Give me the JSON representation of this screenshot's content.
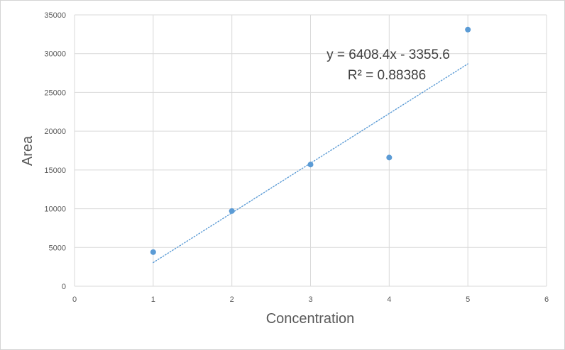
{
  "chart_data": {
    "type": "scatter",
    "title": "",
    "xlabel": "Concentration",
    "ylabel": "Area",
    "xlim": [
      0,
      6
    ],
    "ylim": [
      0,
      35000
    ],
    "xticks": [
      "0",
      "1",
      "2",
      "3",
      "4",
      "5",
      "6"
    ],
    "yticks": [
      "0",
      "5000",
      "10000",
      "15000",
      "20000",
      "25000",
      "30000",
      "35000"
    ],
    "grid": true,
    "points": [
      {
        "x": 1,
        "y": 4400
      },
      {
        "x": 2,
        "y": 9700
      },
      {
        "x": 3,
        "y": 15700
      },
      {
        "x": 4,
        "y": 16600
      },
      {
        "x": 5,
        "y": 33100
      }
    ],
    "trendline": {
      "type": "linear",
      "slope": 6408.4,
      "intercept": -3355.6,
      "x_range": [
        1,
        5
      ],
      "style": "dotted",
      "equation_label": "y = 6408.4x - 3355.6",
      "r2_label": "R² = 0.88386"
    },
    "colors": {
      "points": "#5b9bd5",
      "trendline": "#5b9bd5",
      "grid": "#d9d9d9",
      "text": "#595959"
    }
  }
}
